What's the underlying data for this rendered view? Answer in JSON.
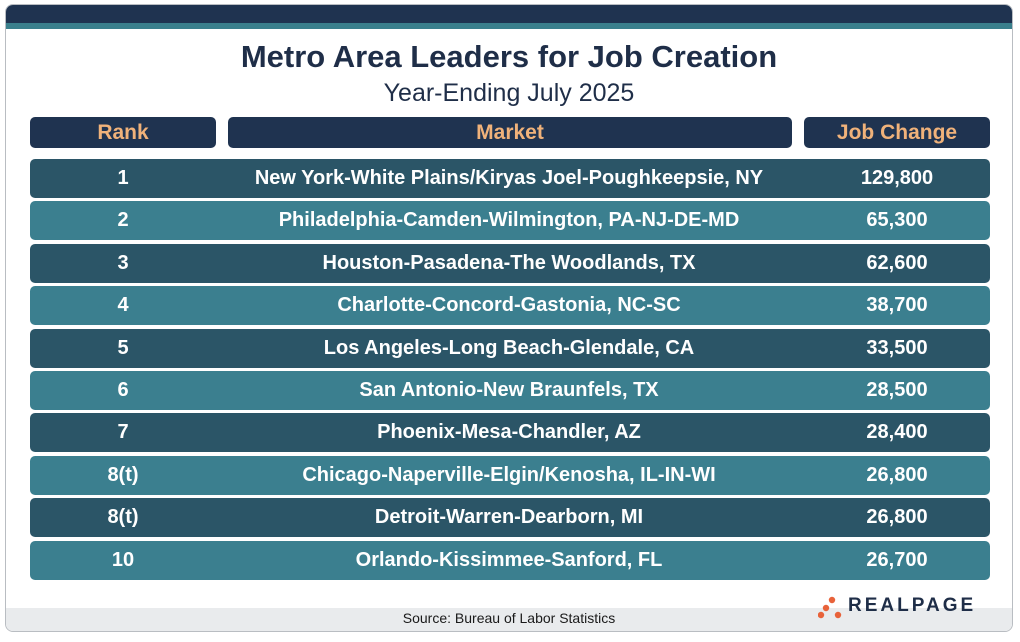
{
  "title": "Metro Area Leaders for Job Creation",
  "subtitle": "Year-Ending July 2025",
  "headers": {
    "rank": "Rank",
    "market": "Market",
    "change": "Job Change"
  },
  "source": "Source: Bureau of Labor Statistics",
  "brand": "REALPAGE",
  "colors": {
    "header_bg": "#1f3350",
    "header_text": "#f0b27a",
    "row_dark": "#2b5567",
    "row_light": "#3b7f8f",
    "logo_accent": "#e8623a"
  },
  "chart_data": {
    "type": "table",
    "columns": [
      "Rank",
      "Market",
      "Job Change"
    ],
    "rows": [
      {
        "rank": "1",
        "market": "New York-White Plains/Kiryas Joel-Poughkeepsie, NY",
        "change": "129,800"
      },
      {
        "rank": "2",
        "market": "Philadelphia-Camden-Wilmington, PA-NJ-DE-MD",
        "change": "65,300"
      },
      {
        "rank": "3",
        "market": "Houston-Pasadena-The Woodlands, TX",
        "change": "62,600"
      },
      {
        "rank": "4",
        "market": "Charlotte-Concord-Gastonia, NC-SC",
        "change": "38,700"
      },
      {
        "rank": "5",
        "market": "Los Angeles-Long Beach-Glendale, CA",
        "change": "33,500"
      },
      {
        "rank": "6",
        "market": "San Antonio-New Braunfels, TX",
        "change": "28,500"
      },
      {
        "rank": "7",
        "market": "Phoenix-Mesa-Chandler, AZ",
        "change": "28,400"
      },
      {
        "rank": "8(t)",
        "market": "Chicago-Naperville-Elgin/Kenosha, IL-IN-WI",
        "change": "26,800"
      },
      {
        "rank": "8(t)",
        "market": "Detroit-Warren-Dearborn, MI",
        "change": "26,800"
      },
      {
        "rank": "10",
        "market": "Orlando-Kissimmee-Sanford, FL",
        "change": "26,700"
      }
    ]
  }
}
